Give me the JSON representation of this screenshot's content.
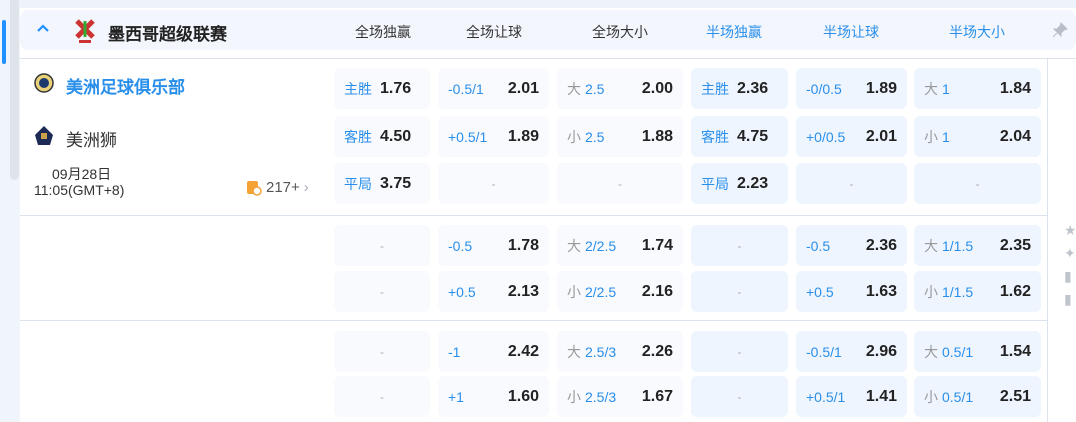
{
  "league": {
    "name": "墨西哥超级联赛",
    "collapse_icon": "chevron-up-icon"
  },
  "columns": [
    "全场独赢",
    "全场让球",
    "全场大小",
    "半场独赢",
    "半场让球",
    "半场大小"
  ],
  "match": {
    "home": "美洲足球俱乐部",
    "away": "美洲狮",
    "date": "09月28日",
    "time": "11:05(GMT+8)",
    "more_count": "217+"
  },
  "colors": {
    "accent": "#2a8fea",
    "half_cell": "#eef5fe",
    "full_cell": "#f8fafe"
  },
  "sections": [
    {
      "rows": [
        [
          {
            "l": "主胜",
            "v": "1.76"
          },
          {
            "l": "-0.5/1",
            "v": "2.01"
          },
          {
            "p": "大",
            "l": "2.5",
            "v": "2.00"
          },
          {
            "l": "主胜",
            "v": "2.36"
          },
          {
            "l": "-0/0.5",
            "v": "1.89"
          },
          {
            "p": "大",
            "l": "1",
            "v": "1.84"
          }
        ],
        [
          {
            "l": "客胜",
            "v": "4.50"
          },
          {
            "l": "+0.5/1",
            "v": "1.89"
          },
          {
            "p": "小",
            "l": "2.5",
            "v": "1.88"
          },
          {
            "l": "客胜",
            "v": "4.75"
          },
          {
            "l": "+0/0.5",
            "v": "2.01"
          },
          {
            "p": "小",
            "l": "1",
            "v": "2.04"
          }
        ],
        [
          {
            "l": "平局",
            "v": "3.75"
          },
          {
            "d": "-"
          },
          {
            "d": "-"
          },
          {
            "l": "平局",
            "v": "2.23"
          },
          {
            "d": "-"
          },
          {
            "d": "-"
          }
        ]
      ]
    },
    {
      "rows": [
        [
          {
            "d": "-"
          },
          {
            "l": "-0.5",
            "v": "1.78"
          },
          {
            "p": "大",
            "l": "2/2.5",
            "v": "1.74"
          },
          {
            "d": "-"
          },
          {
            "l": "-0.5",
            "v": "2.36"
          },
          {
            "p": "大",
            "l": "1/1.5",
            "v": "2.35"
          }
        ],
        [
          {
            "d": "-"
          },
          {
            "l": "+0.5",
            "v": "2.13"
          },
          {
            "p": "小",
            "l": "2/2.5",
            "v": "2.16"
          },
          {
            "d": "-"
          },
          {
            "l": "+0.5",
            "v": "1.63"
          },
          {
            "p": "小",
            "l": "1/1.5",
            "v": "1.62"
          }
        ]
      ]
    },
    {
      "rows": [
        [
          {
            "d": "-"
          },
          {
            "l": "-1",
            "v": "2.42"
          },
          {
            "p": "大",
            "l": "2.5/3",
            "v": "2.26"
          },
          {
            "d": "-"
          },
          {
            "l": "-0.5/1",
            "v": "2.96"
          },
          {
            "p": "大",
            "l": "0.5/1",
            "v": "1.54"
          }
        ],
        [
          {
            "d": "-"
          },
          {
            "l": "+1",
            "v": "1.60"
          },
          {
            "p": "小",
            "l": "2.5/3",
            "v": "1.67"
          },
          {
            "d": "-"
          },
          {
            "l": "+0.5/1",
            "v": "1.41"
          },
          {
            "p": "小",
            "l": "0.5/1",
            "v": "2.51"
          }
        ]
      ]
    }
  ]
}
